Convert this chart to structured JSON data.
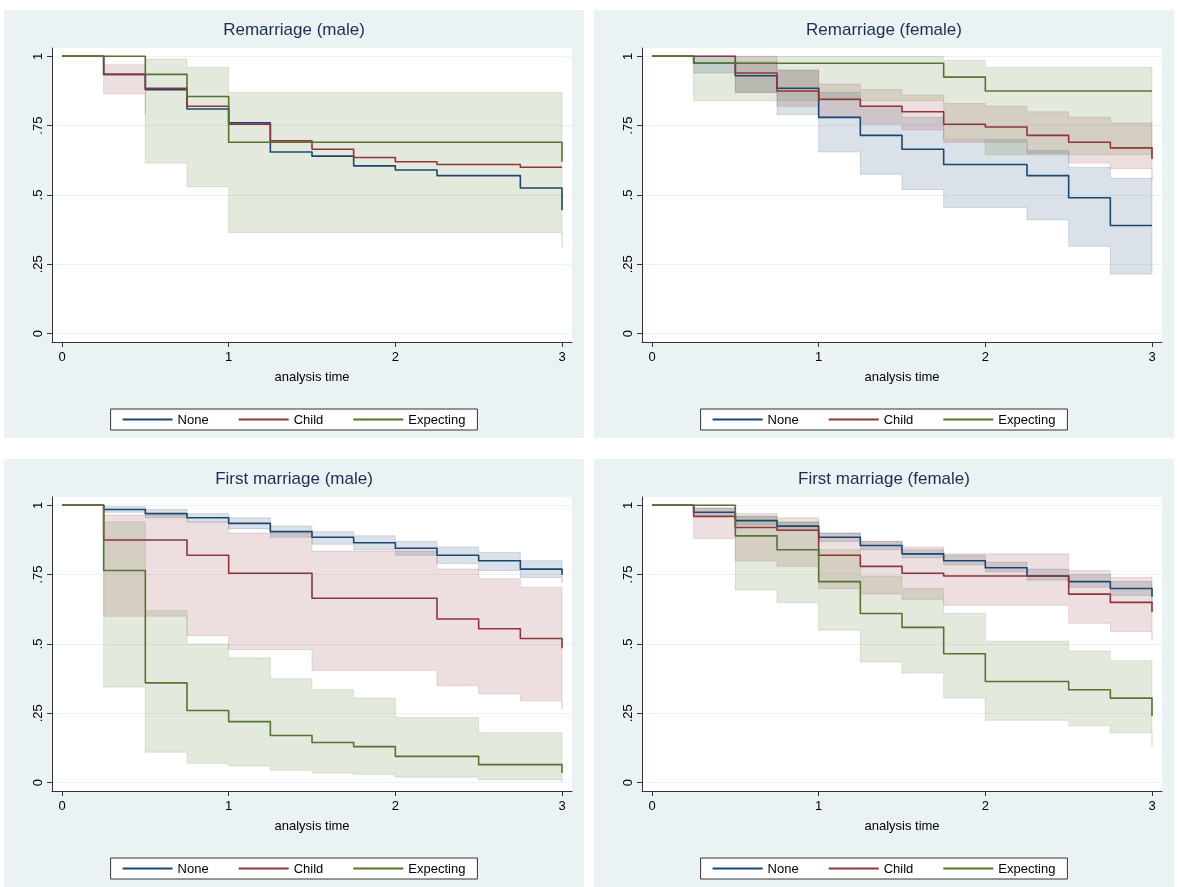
{
  "chart_data": [
    {
      "type": "step",
      "title": "Remarriage (male)",
      "xlabel": "analysis time",
      "x": [
        0,
        0.25,
        0.5,
        0.75,
        1,
        1.25,
        1.5,
        1.75,
        2,
        2.25,
        2.5,
        2.75,
        3
      ],
      "xlim": [
        -0.06,
        3.06
      ],
      "xticks": [
        0,
        1,
        2,
        3
      ],
      "ylim": [
        -0.03,
        1.03
      ],
      "yticks": [
        {
          "value": 0,
          "label": "0"
        },
        {
          "value": 0.25,
          "label": ".25"
        },
        {
          "value": 0.5,
          "label": ".5"
        },
        {
          "value": 0.75,
          "label": ".75"
        },
        {
          "value": 1,
          "label": "1"
        }
      ],
      "grid": "y",
      "legend": "bottom",
      "marker": "none",
      "line_style": "solid",
      "series": [
        {
          "name": "None",
          "color": "#1a476f",
          "values": [
            1,
            0.935,
            0.88,
            0.81,
            0.76,
            0.655,
            0.64,
            0.605,
            0.59,
            0.57,
            0.57,
            0.525,
            0.445
          ]
        },
        {
          "name": "Child",
          "color": "#90353b",
          "values": [
            1,
            0.935,
            0.885,
            0.82,
            0.755,
            0.695,
            0.665,
            0.635,
            0.62,
            0.61,
            0.61,
            0.6,
            0.6
          ],
          "lower": [
            1,
            0.865,
            0.79,
            null,
            null,
            null,
            null,
            null,
            null,
            null,
            null,
            null,
            null
          ],
          "upper": [
            1,
            0.97,
            0.97,
            null,
            null,
            null,
            null,
            null,
            null,
            null,
            null,
            null,
            null
          ]
        },
        {
          "name": "Expecting",
          "color": "#55752f",
          "values": [
            1,
            1,
            0.935,
            0.855,
            0.69,
            0.69,
            0.69,
            0.69,
            0.69,
            0.69,
            0.69,
            0.69,
            0.62
          ],
          "lower": [
            1,
            1,
            0.615,
            0.53,
            0.365,
            0.365,
            0.365,
            0.365,
            0.365,
            0.365,
            0.365,
            0.365,
            0.31
          ],
          "upper": [
            1,
            1,
            0.99,
            0.96,
            0.87,
            0.87,
            0.87,
            0.87,
            0.87,
            0.87,
            0.87,
            0.87,
            0.82
          ]
        }
      ]
    },
    {
      "type": "step",
      "title": "Remarriage (female)",
      "xlabel": "analysis time",
      "x": [
        0,
        0.25,
        0.5,
        0.75,
        1,
        1.25,
        1.5,
        1.75,
        2,
        2.25,
        2.5,
        2.75,
        3
      ],
      "xlim": [
        -0.06,
        3.06
      ],
      "xticks": [
        0,
        1,
        2,
        3
      ],
      "ylim": [
        -0.03,
        1.03
      ],
      "yticks": [
        {
          "value": 0,
          "label": "0"
        },
        {
          "value": 0.25,
          "label": ".25"
        },
        {
          "value": 0.5,
          "label": ".5"
        },
        {
          "value": 0.75,
          "label": ".75"
        },
        {
          "value": 1,
          "label": "1"
        }
      ],
      "grid": "y",
      "legend": "bottom",
      "marker": "none",
      "line_style": "solid",
      "series": [
        {
          "name": "None",
          "color": "#1a476f",
          "values": [
            1,
            0.975,
            0.93,
            0.885,
            0.78,
            0.715,
            0.665,
            0.61,
            0.61,
            0.57,
            0.49,
            0.39,
            0.39
          ],
          "lower": [
            1,
            0.94,
            0.87,
            0.79,
            0.655,
            0.575,
            0.52,
            0.455,
            0.455,
            0.41,
            0.315,
            0.215,
            0.215
          ],
          "upper": [
            1,
            1,
            0.98,
            0.95,
            0.87,
            0.82,
            0.78,
            0.7,
            0.7,
            0.66,
            0.6,
            0.56,
            0.56
          ]
        },
        {
          "name": "Child",
          "color": "#90353b",
          "values": [
            1,
            1,
            0.94,
            0.875,
            0.845,
            0.82,
            0.8,
            0.755,
            0.745,
            0.715,
            0.69,
            0.67,
            0.63
          ],
          "lower": [
            1,
            1,
            0.87,
            0.82,
            0.78,
            0.755,
            0.735,
            0.69,
            0.69,
            0.65,
            0.615,
            0.595,
            0.555
          ],
          "upper": [
            1,
            1,
            1,
            0.95,
            0.9,
            0.88,
            0.86,
            0.83,
            0.82,
            0.8,
            0.78,
            0.76,
            0.74
          ]
        },
        {
          "name": "Expecting",
          "color": "#55752f",
          "values": [
            1,
            0.975,
            0.975,
            0.975,
            0.975,
            0.975,
            0.975,
            0.925,
            0.875,
            0.875,
            0.875,
            0.875,
            0.875
          ],
          "lower": [
            1,
            0.84,
            0.84,
            0.84,
            0.84,
            0.84,
            0.84,
            0.705,
            0.645,
            0.645,
            0.645,
            0.645,
            0.645
          ],
          "upper": [
            1,
            1,
            1,
            1,
            1,
            1,
            1,
            0.985,
            0.96,
            0.96,
            0.96,
            0.96,
            0.96
          ]
        }
      ]
    },
    {
      "type": "step",
      "title": "First marriage (male)",
      "xlabel": "analysis time",
      "x": [
        0,
        0.25,
        0.5,
        0.75,
        1,
        1.25,
        1.5,
        1.75,
        2,
        2.25,
        2.5,
        2.75,
        3
      ],
      "xlim": [
        -0.06,
        3.06
      ],
      "xticks": [
        0,
        1,
        2,
        3
      ],
      "ylim": [
        -0.03,
        1.03
      ],
      "yticks": [
        {
          "value": 0,
          "label": "0"
        },
        {
          "value": 0.25,
          "label": ".25"
        },
        {
          "value": 0.5,
          "label": ".5"
        },
        {
          "value": 0.75,
          "label": ".75"
        },
        {
          "value": 1,
          "label": "1"
        }
      ],
      "grid": "y",
      "legend": "bottom",
      "marker": "none",
      "line_style": "solid",
      "series": [
        {
          "name": "None",
          "color": "#1a476f",
          "values": [
            1,
            0.985,
            0.97,
            0.955,
            0.935,
            0.905,
            0.885,
            0.865,
            0.845,
            0.82,
            0.8,
            0.77,
            0.75
          ],
          "lower": [
            1,
            0.975,
            0.955,
            0.94,
            0.915,
            0.885,
            0.86,
            0.84,
            0.82,
            0.79,
            0.765,
            0.74,
            0.72
          ],
          "upper": [
            1,
            0.995,
            0.985,
            0.97,
            0.955,
            0.925,
            0.905,
            0.89,
            0.87,
            0.85,
            0.83,
            0.8,
            0.78
          ]
        },
        {
          "name": "Child",
          "color": "#90353b",
          "values": [
            1,
            0.875,
            0.875,
            0.82,
            0.755,
            0.755,
            0.665,
            0.665,
            0.665,
            0.59,
            0.555,
            0.52,
            0.485
          ],
          "lower": [
            1,
            0.6,
            0.6,
            0.53,
            0.48,
            0.48,
            0.405,
            0.405,
            0.405,
            0.35,
            0.32,
            0.295,
            0.265
          ],
          "upper": [
            1,
            0.965,
            0.965,
            0.94,
            0.9,
            0.9,
            0.835,
            0.835,
            0.835,
            0.77,
            0.735,
            0.705,
            0.665
          ]
        },
        {
          "name": "Expecting",
          "color": "#55752f",
          "values": [
            1,
            0.765,
            0.36,
            0.26,
            0.22,
            0.17,
            0.145,
            0.13,
            0.095,
            0.095,
            0.065,
            0.065,
            0.035
          ],
          "lower": [
            1,
            0.345,
            0.11,
            0.07,
            0.06,
            0.045,
            0.035,
            0.03,
            0.02,
            0.02,
            0.01,
            0.01,
            0
          ],
          "upper": [
            1,
            0.94,
            0.62,
            0.5,
            0.45,
            0.375,
            0.335,
            0.305,
            0.235,
            0.235,
            0.18,
            0.18,
            0.12
          ]
        }
      ]
    },
    {
      "type": "step",
      "title": "First marriage (female)",
      "xlabel": "analysis time",
      "x": [
        0,
        0.25,
        0.5,
        0.75,
        1,
        1.25,
        1.5,
        1.75,
        2,
        2.25,
        2.5,
        2.75,
        3
      ],
      "xlim": [
        -0.06,
        3.06
      ],
      "xticks": [
        0,
        1,
        2,
        3
      ],
      "ylim": [
        -0.03,
        1.03
      ],
      "yticks": [
        {
          "value": 0,
          "label": "0"
        },
        {
          "value": 0.25,
          "label": ".25"
        },
        {
          "value": 0.5,
          "label": ".5"
        },
        {
          "value": 0.75,
          "label": ".75"
        },
        {
          "value": 1,
          "label": "1"
        }
      ],
      "grid": "y",
      "legend": "bottom",
      "marker": "none",
      "line_style": "solid",
      "series": [
        {
          "name": "None",
          "color": "#1a476f",
          "values": [
            1,
            0.975,
            0.945,
            0.925,
            0.885,
            0.855,
            0.825,
            0.8,
            0.775,
            0.745,
            0.725,
            0.7,
            0.67
          ],
          "lower": [
            1,
            0.965,
            0.93,
            0.91,
            0.87,
            0.84,
            0.81,
            0.785,
            0.76,
            0.73,
            0.705,
            0.675,
            0.64
          ],
          "upper": [
            1,
            0.99,
            0.96,
            0.94,
            0.9,
            0.87,
            0.84,
            0.82,
            0.795,
            0.77,
            0.75,
            0.725,
            0.7
          ]
        },
        {
          "name": "Child",
          "color": "#90353b",
          "values": [
            1,
            0.96,
            0.92,
            0.91,
            0.82,
            0.78,
            0.755,
            0.745,
            0.745,
            0.745,
            0.68,
            0.65,
            0.615
          ],
          "lower": [
            1,
            0.88,
            0.8,
            0.78,
            0.7,
            0.68,
            0.66,
            0.64,
            0.64,
            0.64,
            0.575,
            0.545,
            0.51
          ],
          "upper": [
            1,
            0.99,
            0.97,
            0.955,
            0.9,
            0.87,
            0.85,
            0.825,
            0.825,
            0.825,
            0.765,
            0.74,
            0.7
          ]
        },
        {
          "name": "Expecting",
          "color": "#55752f",
          "values": [
            1,
            1,
            0.89,
            0.84,
            0.725,
            0.61,
            0.56,
            0.465,
            0.365,
            0.365,
            0.335,
            0.305,
            0.24
          ],
          "lower": [
            1,
            1,
            0.695,
            0.65,
            0.55,
            0.435,
            0.395,
            0.305,
            0.225,
            0.225,
            0.205,
            0.18,
            0.13
          ],
          "upper": [
            1,
            1,
            0.96,
            0.94,
            0.84,
            0.745,
            0.7,
            0.61,
            0.51,
            0.51,
            0.475,
            0.44,
            0.37
          ]
        }
      ]
    }
  ]
}
